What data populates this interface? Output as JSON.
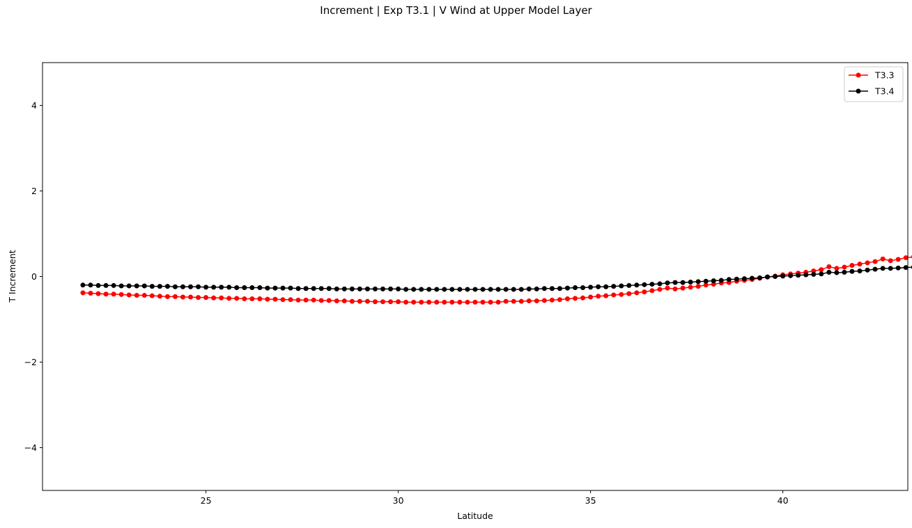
{
  "chart_data": {
    "type": "line",
    "title": "Increment | Exp T3.1 | V Wind at Upper Model Layer",
    "xlabel": "Latitude",
    "ylabel": "T Increment",
    "xlim": [
      20.75,
      43.25
    ],
    "ylim": [
      -5,
      5
    ],
    "xticks": [
      25,
      30,
      35,
      40
    ],
    "yticks": [
      -4,
      -2,
      0,
      2,
      4
    ],
    "ytick_labels": [
      "−4",
      "−2",
      "0",
      "2",
      "4"
    ],
    "xtick_labels": [
      "25",
      "30",
      "35",
      "40"
    ],
    "grid": false,
    "legend_position": "top-right",
    "x_start": 21.8,
    "x_step": 0.2,
    "series": [
      {
        "name": "T3.3",
        "color": "#ff0000",
        "marker": "circle",
        "values": [
          -0.38,
          -0.39,
          -0.4,
          -0.41,
          -0.41,
          -0.42,
          -0.43,
          -0.44,
          -0.44,
          -0.45,
          -0.46,
          -0.47,
          -0.47,
          -0.48,
          -0.48,
          -0.49,
          -0.49,
          -0.5,
          -0.5,
          -0.51,
          -0.51,
          -0.52,
          -0.52,
          -0.52,
          -0.53,
          -0.53,
          -0.54,
          -0.54,
          -0.55,
          -0.55,
          -0.55,
          -0.56,
          -0.56,
          -0.57,
          -0.57,
          -0.58,
          -0.58,
          -0.58,
          -0.59,
          -0.59,
          -0.59,
          -0.59,
          -0.6,
          -0.6,
          -0.6,
          -0.6,
          -0.6,
          -0.6,
          -0.6,
          -0.6,
          -0.6,
          -0.6,
          -0.6,
          -0.6,
          -0.6,
          -0.58,
          -0.58,
          -0.58,
          -0.57,
          -0.57,
          -0.56,
          -0.55,
          -0.54,
          -0.52,
          -0.51,
          -0.5,
          -0.48,
          -0.46,
          -0.45,
          -0.43,
          -0.42,
          -0.4,
          -0.38,
          -0.36,
          -0.33,
          -0.3,
          -0.27,
          -0.29,
          -0.27,
          -0.25,
          -0.23,
          -0.2,
          -0.18,
          -0.15,
          -0.14,
          -0.11,
          -0.09,
          -0.07,
          -0.04,
          -0.01,
          0.01,
          0.04,
          0.06,
          0.08,
          0.1,
          0.13,
          0.16,
          0.23,
          0.19,
          0.22,
          0.26,
          0.29,
          0.32,
          0.35,
          0.41,
          0.37,
          0.4,
          0.44,
          0.46,
          0.48
        ]
      },
      {
        "name": "T3.4",
        "color": "#000000",
        "marker": "circle",
        "values": [
          -0.2,
          -0.2,
          -0.21,
          -0.21,
          -0.21,
          -0.22,
          -0.22,
          -0.22,
          -0.22,
          -0.23,
          -0.23,
          -0.23,
          -0.24,
          -0.24,
          -0.24,
          -0.24,
          -0.25,
          -0.25,
          -0.25,
          -0.25,
          -0.26,
          -0.26,
          -0.26,
          -0.26,
          -0.27,
          -0.27,
          -0.27,
          -0.27,
          -0.28,
          -0.28,
          -0.28,
          -0.28,
          -0.28,
          -0.29,
          -0.29,
          -0.29,
          -0.29,
          -0.29,
          -0.29,
          -0.29,
          -0.29,
          -0.29,
          -0.3,
          -0.3,
          -0.3,
          -0.3,
          -0.3,
          -0.3,
          -0.3,
          -0.3,
          -0.3,
          -0.3,
          -0.3,
          -0.3,
          -0.3,
          -0.3,
          -0.3,
          -0.3,
          -0.29,
          -0.29,
          -0.28,
          -0.28,
          -0.28,
          -0.27,
          -0.26,
          -0.26,
          -0.25,
          -0.24,
          -0.24,
          -0.23,
          -0.22,
          -0.21,
          -0.2,
          -0.19,
          -0.18,
          -0.17,
          -0.15,
          -0.14,
          -0.14,
          -0.13,
          -0.12,
          -0.11,
          -0.1,
          -0.09,
          -0.07,
          -0.06,
          -0.05,
          -0.04,
          -0.03,
          -0.01,
          0.0,
          0.01,
          0.02,
          0.03,
          0.04,
          0.05,
          0.06,
          0.1,
          0.09,
          0.1,
          0.12,
          0.13,
          0.15,
          0.17,
          0.19,
          0.19,
          0.2,
          0.21,
          0.22,
          0.23
        ]
      }
    ]
  }
}
